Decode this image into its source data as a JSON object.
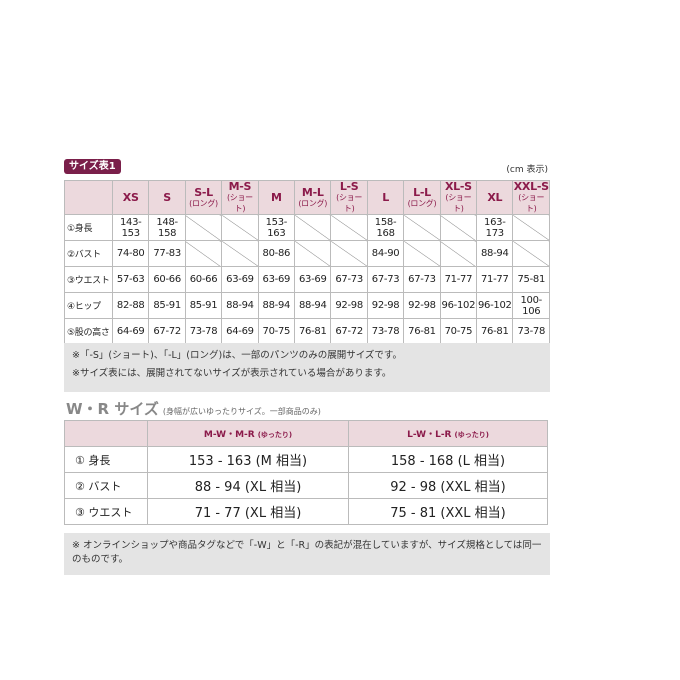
{
  "chart1": {
    "badge": "サイズ表1",
    "unit": "(cm 表示)",
    "columns": [
      {
        "name": "XS",
        "sub": ""
      },
      {
        "name": "S",
        "sub": ""
      },
      {
        "name": "S-L",
        "sub": "(ロング)"
      },
      {
        "name": "M-S",
        "sub": "(ショート)"
      },
      {
        "name": "M",
        "sub": ""
      },
      {
        "name": "M-L",
        "sub": "(ロング)"
      },
      {
        "name": "L-S",
        "sub": "(ショート)"
      },
      {
        "name": "L",
        "sub": ""
      },
      {
        "name": "L-L",
        "sub": "(ロング)"
      },
      {
        "name": "XL-S",
        "sub": "(ショート)"
      },
      {
        "name": "XL",
        "sub": ""
      },
      {
        "name": "XXL-S",
        "sub": "(ショート)"
      }
    ],
    "rows": [
      {
        "label": "①身長",
        "values": [
          "143-153",
          "148-158",
          null,
          null,
          "153-163",
          null,
          null,
          "158-168",
          null,
          null,
          "163-173",
          null
        ]
      },
      {
        "label": "②バスト",
        "values": [
          "74-80",
          "77-83",
          null,
          null,
          "80-86",
          null,
          null,
          "84-90",
          null,
          null,
          "88-94",
          null
        ]
      },
      {
        "label": "③ウエスト",
        "values": [
          "57-63",
          "60-66",
          "60-66",
          "63-69",
          "63-69",
          "63-69",
          "67-73",
          "67-73",
          "67-73",
          "71-77",
          "71-77",
          "75-81"
        ]
      },
      {
        "label": "④ヒップ",
        "values": [
          "82-88",
          "85-91",
          "85-91",
          "88-94",
          "88-94",
          "88-94",
          "92-98",
          "92-98",
          "92-98",
          "96-102",
          "96-102",
          "100-106"
        ]
      },
      {
        "label": "⑤股の高さ",
        "values": [
          "64-69",
          "67-72",
          "73-78",
          "64-69",
          "70-75",
          "76-81",
          "67-72",
          "73-78",
          "76-81",
          "70-75",
          "76-81",
          "73-78"
        ]
      }
    ],
    "notes": [
      "※「-S」(ショート)、「-L」(ロング)は、一部のパンツのみの展開サイズです。",
      "※サイズ表には、展開されてないサイズが表示されている場合があります。"
    ]
  },
  "wr": {
    "title": "W・R サイズ",
    "subtitle": "(身幅が広いゆったりサイズ。一部商品のみ)",
    "columns": [
      {
        "name": "M-W・M-R",
        "sub": "(ゆったり)"
      },
      {
        "name": "L-W・L-R",
        "sub": "(ゆったり)"
      }
    ],
    "rows": [
      {
        "label": "① 身長",
        "values": [
          "153 - 163 (M 相当)",
          "158 - 168 (L 相当)"
        ]
      },
      {
        "label": "② バスト",
        "values": [
          "88 - 94 (XL 相当)",
          "92 - 98 (XXL 相当)"
        ]
      },
      {
        "label": "③ ウエスト",
        "values": [
          "71 - 77 (XL 相当)",
          "75 - 81 (XXL 相当)"
        ]
      }
    ],
    "note": "※ オンラインショップや商品タグなどで「-W」と「-R」の表記が混在していますが、サイズ規格としては同一のものです。"
  },
  "colors": {
    "accent": "#7a1f4a",
    "header_bg": "#ecd9dd",
    "note_bg": "#e4e4e4"
  }
}
